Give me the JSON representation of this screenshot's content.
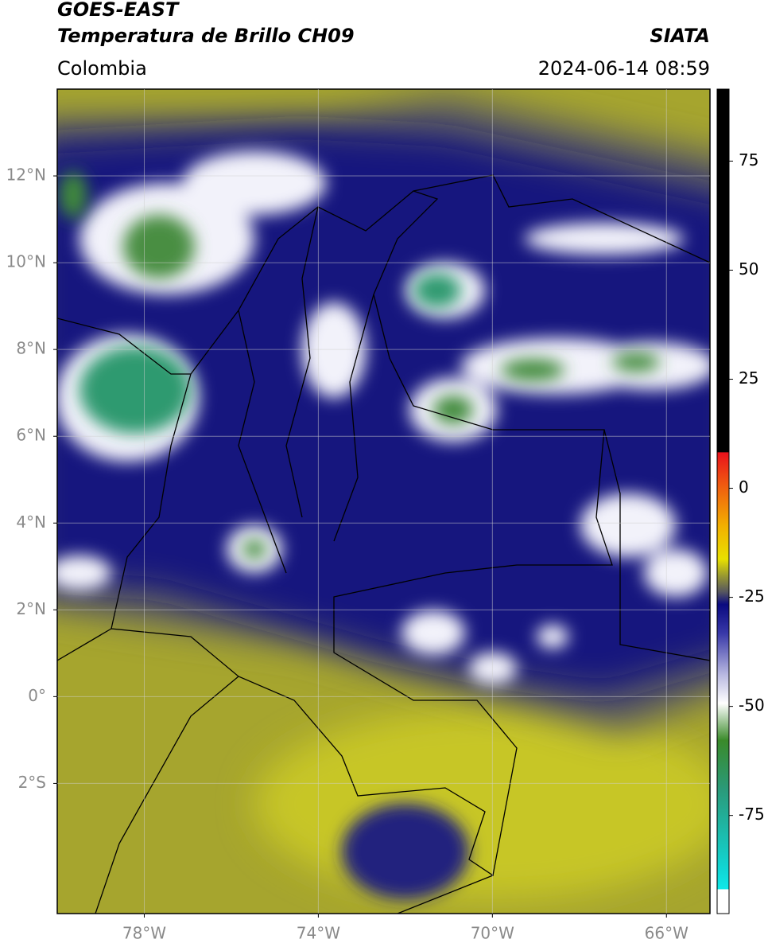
{
  "header": {
    "title": "GOES-EAST",
    "subtitle": "Temperatura de Brillo CH09",
    "source": "SIATA",
    "region": "Colombia",
    "datetime": "2024-06-14 08:59"
  },
  "map": {
    "xlim": [
      -80,
      -65
    ],
    "ylim": [
      -5,
      14
    ],
    "xticks": [
      {
        "value": -78,
        "label": "78°W"
      },
      {
        "value": -74,
        "label": "74°W"
      },
      {
        "value": -70,
        "label": "70°W"
      },
      {
        "value": -66,
        "label": "66°W"
      }
    ],
    "yticks": [
      {
        "value": 12,
        "label": "12°N"
      },
      {
        "value": 10,
        "label": "10°N"
      },
      {
        "value": 8,
        "label": "8°N"
      },
      {
        "value": 6,
        "label": "6°N"
      },
      {
        "value": 4,
        "label": "4°N"
      },
      {
        "value": 2,
        "label": "2°N"
      },
      {
        "value": 0,
        "label": "0°"
      },
      {
        "value": -2,
        "label": "2°S"
      }
    ],
    "grid": true
  },
  "colorbar": {
    "lim": [
      -97.5,
      91.5
    ],
    "ticks": [
      75,
      50,
      25,
      0,
      -25,
      -50,
      -75
    ]
  }
}
